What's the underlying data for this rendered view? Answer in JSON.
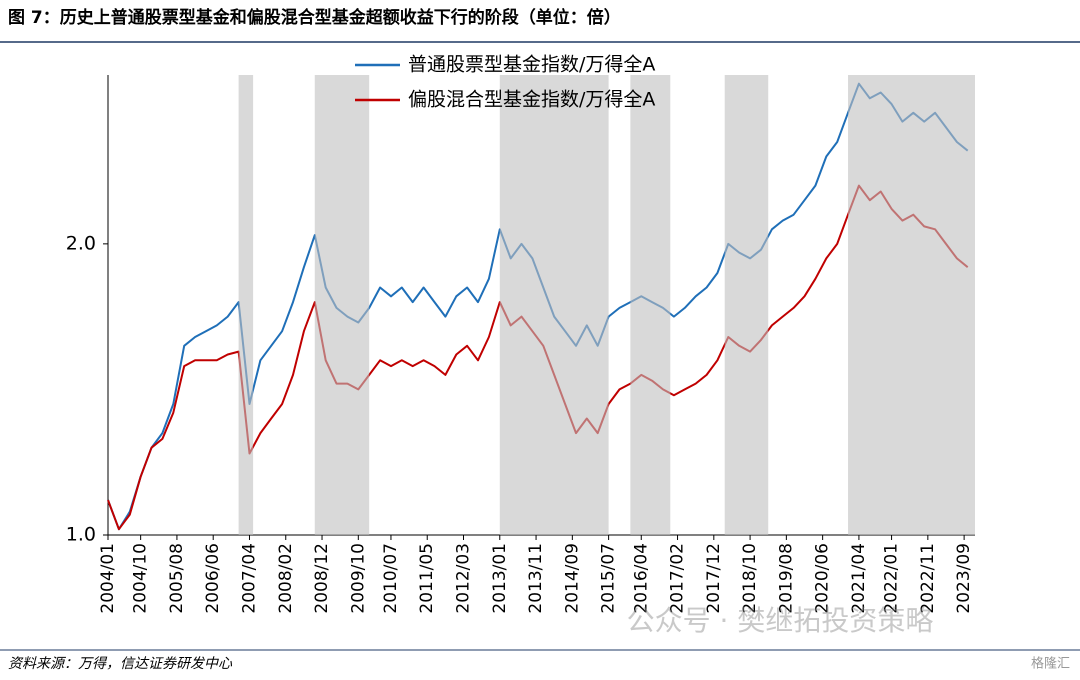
{
  "chart_data": {
    "type": "line",
    "title": "图 7：历史上普通股票型基金和偏股混合型基金超额收益下行的阶段（单位：倍）",
    "source": "资料来源：万得，信达证券研发中心",
    "watermark": "公众号 · 樊继拓投资策略",
    "watermark2": "格隆汇",
    "x": [
      "2004/01",
      "2004/04",
      "2004/07",
      "2004/10",
      "2005/01",
      "2005/04",
      "2005/07",
      "2005/10",
      "2006/01",
      "2006/04",
      "2006/07",
      "2006/10",
      "2007/01",
      "2007/04",
      "2007/07",
      "2007/10",
      "2008/01",
      "2008/04",
      "2008/07",
      "2008/10",
      "2009/01",
      "2009/04",
      "2009/07",
      "2009/10",
      "2010/01",
      "2010/04",
      "2010/07",
      "2010/10",
      "2011/01",
      "2011/04",
      "2011/07",
      "2011/10",
      "2012/01",
      "2012/04",
      "2012/07",
      "2012/10",
      "2013/01",
      "2013/04",
      "2013/07",
      "2013/10",
      "2014/01",
      "2014/04",
      "2014/07",
      "2014/10",
      "2015/01",
      "2015/04",
      "2015/07",
      "2015/10",
      "2016/01",
      "2016/04",
      "2016/07",
      "2016/10",
      "2017/01",
      "2017/04",
      "2017/07",
      "2017/10",
      "2018/01",
      "2018/04",
      "2018/07",
      "2018/10",
      "2019/01",
      "2019/04",
      "2019/07",
      "2019/10",
      "2020/01",
      "2020/04",
      "2020/07",
      "2020/10",
      "2021/01",
      "2021/04",
      "2021/07",
      "2021/10",
      "2022/01",
      "2022/04",
      "2022/07",
      "2022/10",
      "2023/01",
      "2023/04",
      "2023/07",
      "2023/10"
    ],
    "series": [
      {
        "name": "普通股票型基金指数/万得全A",
        "color": "#1f6fb8",
        "values": [
          1.12,
          1.02,
          1.08,
          1.2,
          1.3,
          1.35,
          1.45,
          1.65,
          1.68,
          1.7,
          1.72,
          1.75,
          1.8,
          1.45,
          1.6,
          1.65,
          1.7,
          1.8,
          1.92,
          2.03,
          1.85,
          1.78,
          1.75,
          1.73,
          1.78,
          1.85,
          1.82,
          1.85,
          1.8,
          1.85,
          1.8,
          1.75,
          1.82,
          1.85,
          1.8,
          1.88,
          2.05,
          1.95,
          2.0,
          1.95,
          1.85,
          1.75,
          1.7,
          1.65,
          1.72,
          1.65,
          1.75,
          1.78,
          1.8,
          1.82,
          1.8,
          1.78,
          1.75,
          1.78,
          1.82,
          1.85,
          1.9,
          2.0,
          1.97,
          1.95,
          1.98,
          2.05,
          2.08,
          2.1,
          2.15,
          2.2,
          2.3,
          2.35,
          2.45,
          2.55,
          2.5,
          2.52,
          2.48,
          2.42,
          2.45,
          2.42,
          2.45,
          2.4,
          2.35,
          2.32
        ]
      },
      {
        "name": "偏股混合型基金指数/万得全A",
        "color": "#c00000",
        "values": [
          1.12,
          1.02,
          1.07,
          1.2,
          1.3,
          1.33,
          1.42,
          1.58,
          1.6,
          1.6,
          1.6,
          1.62,
          1.63,
          1.28,
          1.35,
          1.4,
          1.45,
          1.55,
          1.7,
          1.8,
          1.6,
          1.52,
          1.52,
          1.5,
          1.55,
          1.6,
          1.58,
          1.6,
          1.58,
          1.6,
          1.58,
          1.55,
          1.62,
          1.65,
          1.6,
          1.68,
          1.8,
          1.72,
          1.75,
          1.7,
          1.65,
          1.55,
          1.45,
          1.35,
          1.4,
          1.35,
          1.45,
          1.5,
          1.52,
          1.55,
          1.53,
          1.5,
          1.48,
          1.5,
          1.52,
          1.55,
          1.6,
          1.68,
          1.65,
          1.63,
          1.67,
          1.72,
          1.75,
          1.78,
          1.82,
          1.88,
          1.95,
          2.0,
          2.1,
          2.2,
          2.15,
          2.18,
          2.12,
          2.08,
          2.1,
          2.06,
          2.05,
          2.0,
          1.95,
          1.92
        ]
      }
    ],
    "shaded_periods": [
      [
        "2007/01",
        "2007/05"
      ],
      [
        "2008/10",
        "2010/01"
      ],
      [
        "2013/01",
        "2015/07"
      ],
      [
        "2016/01",
        "2016/12"
      ],
      [
        "2018/03",
        "2019/03"
      ],
      [
        "2021/01",
        "2023/12"
      ]
    ],
    "shade_color": "#bfbfbf",
    "xlim": [
      "2004/01",
      "2023/12"
    ],
    "xticks": [
      "2004/01",
      "2004/10",
      "2005/08",
      "2006/06",
      "2007/04",
      "2008/02",
      "2008/12",
      "2009/10",
      "2010/07",
      "2011/05",
      "2012/03",
      "2013/01",
      "2013/11",
      "2014/09",
      "2015/07",
      "2016/04",
      "2017/02",
      "2017/12",
      "2018/10",
      "2019/08",
      "2020/06",
      "2021/04",
      "2022/01",
      "2022/11",
      "2023/09"
    ],
    "ylim": [
      1.0,
      2.58
    ],
    "yticks": [
      {
        "value": 1.0,
        "label": "1.0"
      },
      {
        "value": 2.0,
        "label": "2.0"
      }
    ]
  }
}
